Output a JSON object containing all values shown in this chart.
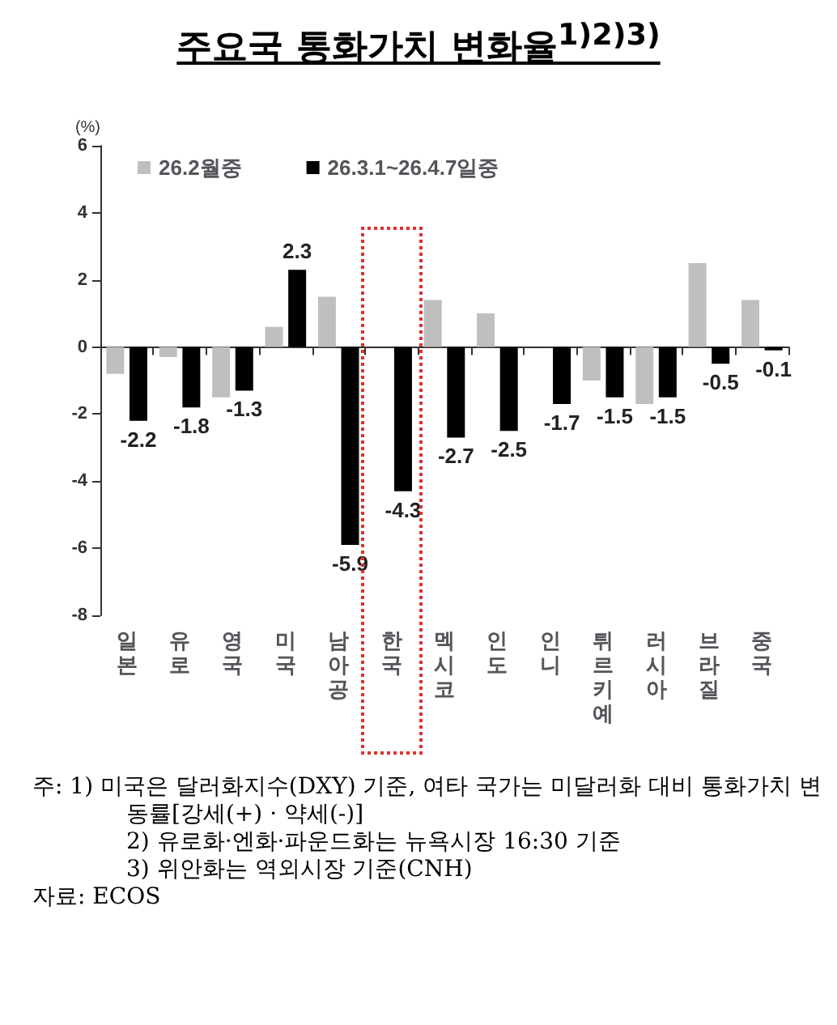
{
  "chart_data": {
    "type": "bar",
    "title": "주요국 통화가치 변화율$^{1)2)3)}$",
    "ylabel": "(%)",
    "categories": [
      "일본",
      "유로",
      "영국",
      "미국",
      "남아공",
      "한국",
      "멕시코",
      "인도",
      "인니",
      "튀르키예",
      "러시아",
      "브라질",
      "중국"
    ],
    "series": [
      {
        "name": "26.2월중",
        "color": "#bfbfbf",
        "values": [
          -0.8,
          -0.3,
          -1.5,
          0.6,
          1.5,
          0,
          1.4,
          1.0,
          0,
          -1.0,
          -1.7,
          2.5,
          1.4
        ]
      },
      {
        "name": "26.3.1~26.4.7일중",
        "color": "#000000",
        "values": [
          -2.2,
          -1.8,
          -1.3,
          2.3,
          -5.9,
          -4.3,
          -2.7,
          -2.5,
          -1.7,
          -1.5,
          -1.5,
          -0.5,
          -0.1
        ],
        "value_labels": [
          "-2.2",
          "-1.8",
          "-1.3",
          "2.3",
          "-5.9",
          "-4.3",
          "-2.7",
          "-2.5",
          "-1.7",
          "-1.5",
          "-1.5",
          "-0.5",
          "-0.1"
        ]
      }
    ],
    "ylim": [
      -8,
      6
    ],
    "yticks": [
      -8,
      -6,
      -4,
      -2,
      0,
      2,
      4,
      6
    ],
    "legend": "top left",
    "annotations": [
      "주: 1) 미국은 달러화지수(DXY) 기준, 여타 국가는 미달러화 대비 통화가치 변동률[강세(+) · 약세(-)]",
      "2) 유로화·엔화·파운드화는 뉴욕시장 16:30 기준",
      "3) 위안화는 역외시장 기준(CNH)",
      "자료: ECOS"
    ]
  }
}
